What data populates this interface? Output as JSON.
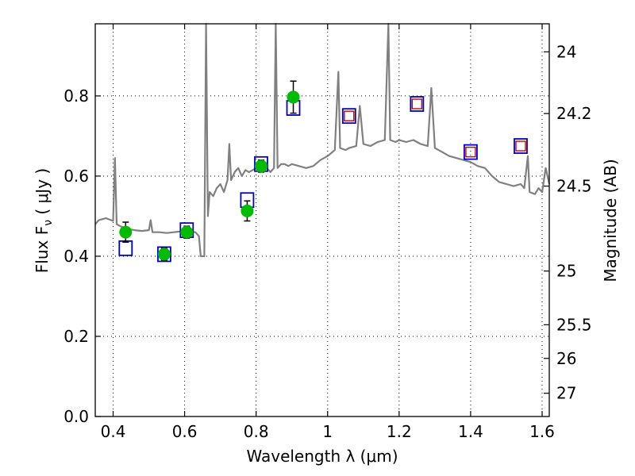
{
  "chart_data": {
    "type": "line",
    "title": "",
    "xlabel": "Wavelength  λ (μm)",
    "ylabel": "Flux  F",
    "ylabel_sub": "ν",
    "ylabel_unit": "  ( μJy )",
    "ylabel_right": "Magnitude (AB)",
    "xlim": [
      0.35,
      1.62
    ],
    "ylim": [
      0.0,
      0.98
    ],
    "xticks": [
      0.4,
      0.6,
      0.8,
      1.0,
      1.2,
      1.4,
      1.6
    ],
    "xtick_labels": [
      "0.4",
      "0.6",
      "0.8",
      "1",
      "1.2",
      "1.4",
      "1.6"
    ],
    "yticks": [
      0.0,
      0.2,
      0.4,
      0.6,
      0.8
    ],
    "ytick_labels": [
      "0.0",
      "0.2",
      "0.4",
      "0.6",
      "0.8"
    ],
    "right_ticks": [
      {
        "label": "24",
        "flux": 0.91
      },
      {
        "label": "24.2",
        "flux": 0.756
      },
      {
        "label": "24.5",
        "flux": 0.575
      },
      {
        "label": "25",
        "flux": 0.363
      },
      {
        "label": "25.5",
        "flux": 0.229
      },
      {
        "label": "26",
        "flux": 0.145
      },
      {
        "label": "27",
        "flux": 0.058
      }
    ],
    "grid": true,
    "series": [
      {
        "name": "template spectrum",
        "color": "#808080",
        "points": [
          [
            0.35,
            0.48
          ],
          [
            0.36,
            0.49
          ],
          [
            0.38,
            0.495
          ],
          [
            0.4,
            0.488
          ],
          [
            0.405,
            0.645
          ],
          [
            0.41,
            0.48
          ],
          [
            0.42,
            0.475
          ],
          [
            0.44,
            0.468
          ],
          [
            0.46,
            0.465
          ],
          [
            0.48,
            0.463
          ],
          [
            0.5,
            0.465
          ],
          [
            0.505,
            0.49
          ],
          [
            0.51,
            0.46
          ],
          [
            0.53,
            0.46
          ],
          [
            0.55,
            0.458
          ],
          [
            0.57,
            0.46
          ],
          [
            0.59,
            0.462
          ],
          [
            0.61,
            0.462
          ],
          [
            0.63,
            0.46
          ],
          [
            0.64,
            0.45
          ],
          [
            0.645,
            0.4
          ],
          [
            0.655,
            0.4
          ],
          [
            0.66,
            0.98
          ],
          [
            0.665,
            0.5
          ],
          [
            0.67,
            0.56
          ],
          [
            0.68,
            0.55
          ],
          [
            0.69,
            0.57
          ],
          [
            0.7,
            0.58
          ],
          [
            0.71,
            0.56
          ],
          [
            0.72,
            0.59
          ],
          [
            0.725,
            0.68
          ],
          [
            0.73,
            0.59
          ],
          [
            0.74,
            0.61
          ],
          [
            0.75,
            0.62
          ],
          [
            0.76,
            0.6
          ],
          [
            0.77,
            0.615
          ],
          [
            0.78,
            0.61
          ],
          [
            0.79,
            0.615
          ],
          [
            0.8,
            0.62
          ],
          [
            0.81,
            0.61
          ],
          [
            0.82,
            0.615
          ],
          [
            0.83,
            0.62
          ],
          [
            0.84,
            0.61
          ],
          [
            0.85,
            0.62
          ],
          [
            0.855,
            0.98
          ],
          [
            0.86,
            0.62
          ],
          [
            0.87,
            0.63
          ],
          [
            0.88,
            0.63
          ],
          [
            0.89,
            0.625
          ],
          [
            0.9,
            0.63
          ],
          [
            0.92,
            0.625
          ],
          [
            0.94,
            0.62
          ],
          [
            0.96,
            0.625
          ],
          [
            0.98,
            0.64
          ],
          [
            1.0,
            0.65
          ],
          [
            1.02,
            0.665
          ],
          [
            1.03,
            0.86
          ],
          [
            1.035,
            0.67
          ],
          [
            1.05,
            0.665
          ],
          [
            1.06,
            0.67
          ],
          [
            1.08,
            0.675
          ],
          [
            1.09,
            0.775
          ],
          [
            1.1,
            0.68
          ],
          [
            1.12,
            0.675
          ],
          [
            1.14,
            0.685
          ],
          [
            1.16,
            0.69
          ],
          [
            1.17,
            0.98
          ],
          [
            1.175,
            0.69
          ],
          [
            1.19,
            0.685
          ],
          [
            1.2,
            0.69
          ],
          [
            1.22,
            0.685
          ],
          [
            1.24,
            0.69
          ],
          [
            1.26,
            0.68
          ],
          [
            1.28,
            0.675
          ],
          [
            1.29,
            0.82
          ],
          [
            1.3,
            0.67
          ],
          [
            1.32,
            0.66
          ],
          [
            1.34,
            0.65
          ],
          [
            1.36,
            0.645
          ],
          [
            1.38,
            0.64
          ],
          [
            1.4,
            0.635
          ],
          [
            1.42,
            0.625
          ],
          [
            1.44,
            0.62
          ],
          [
            1.46,
            0.6
          ],
          [
            1.48,
            0.585
          ],
          [
            1.5,
            0.58
          ],
          [
            1.52,
            0.575
          ],
          [
            1.54,
            0.58
          ],
          [
            1.55,
            0.57
          ],
          [
            1.56,
            0.65
          ],
          [
            1.565,
            0.56
          ],
          [
            1.58,
            0.555
          ],
          [
            1.59,
            0.57
          ],
          [
            1.6,
            0.56
          ],
          [
            1.61,
            0.62
          ],
          [
            1.62,
            0.58
          ]
        ]
      },
      {
        "name": "model photometry (blue squares)",
        "color": "#0000cc",
        "x": [
          0.435,
          0.543,
          0.606,
          0.775,
          0.814,
          0.904,
          1.06,
          1.25,
          1.4,
          1.54
        ],
        "y": [
          0.42,
          0.405,
          0.465,
          0.54,
          0.63,
          0.77,
          0.75,
          0.78,
          0.66,
          0.675
        ]
      },
      {
        "name": "observed HST detections (green circles)",
        "color": "#00bb00",
        "x": [
          0.435,
          0.543,
          0.606,
          0.775,
          0.814,
          0.904
        ],
        "y": [
          0.46,
          0.405,
          0.46,
          0.513,
          0.625,
          0.797
        ],
        "err": [
          0.025,
          0.015,
          0.015,
          0.025,
          0.015,
          0.04
        ]
      },
      {
        "name": "IR measurements (red squares)",
        "color": "#cc0000",
        "x": [
          1.06,
          1.25,
          1.4,
          1.54
        ],
        "y": [
          0.75,
          0.78,
          0.66,
          0.675
        ]
      }
    ]
  }
}
